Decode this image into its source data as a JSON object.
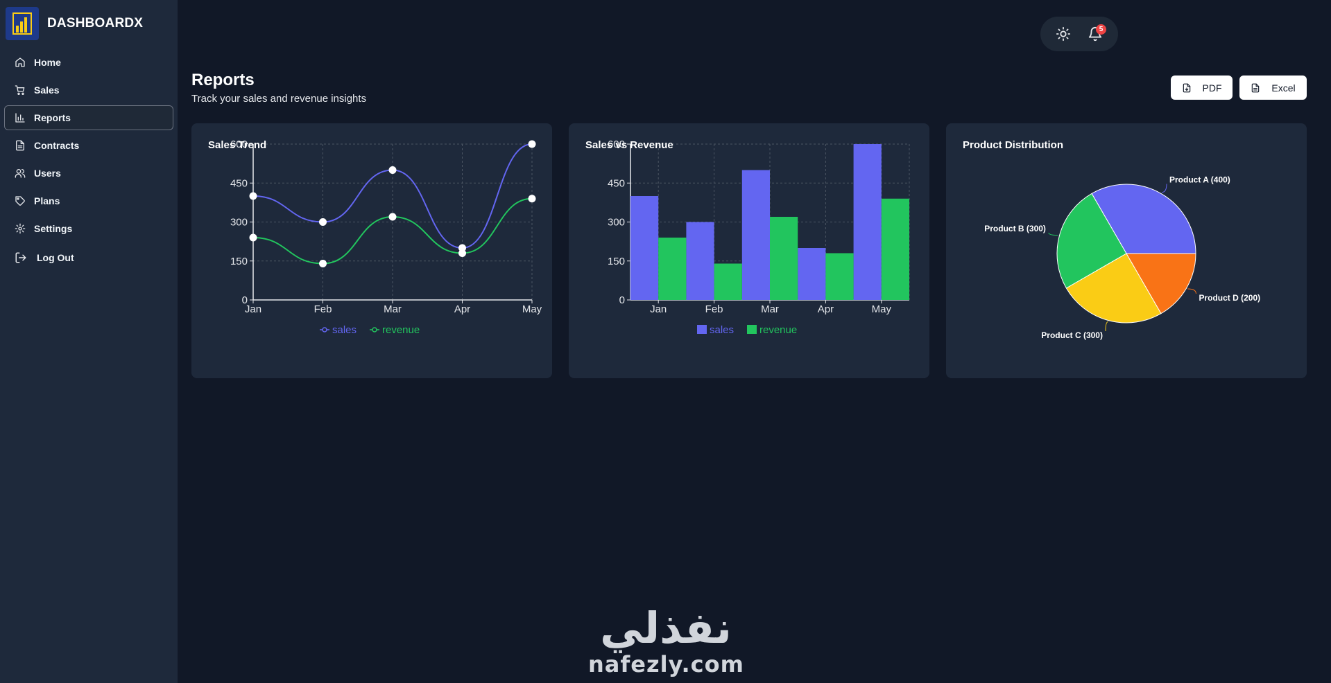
{
  "app": {
    "brand": "DASHBOARDX"
  },
  "sidebar": {
    "items": [
      {
        "label": "Home",
        "icon": "home-icon"
      },
      {
        "label": "Sales",
        "icon": "cart-icon"
      },
      {
        "label": "Reports",
        "icon": "bar-chart-icon",
        "active": true
      },
      {
        "label": "Contracts",
        "icon": "document-icon"
      },
      {
        "label": "Users",
        "icon": "users-icon"
      },
      {
        "label": "Plans",
        "icon": "tag-icon"
      },
      {
        "label": "Settings",
        "icon": "gear-icon"
      },
      {
        "label": "Log Out",
        "icon": "logout-icon"
      }
    ]
  },
  "topbar": {
    "notification_count": "5",
    "theme_icon": "sun-icon",
    "bell_icon": "bell-icon"
  },
  "header": {
    "title": "Reports",
    "subtitle": "Track your sales and revenue insights"
  },
  "actions": {
    "pdf_label": "PDF",
    "excel_label": "Excel"
  },
  "colors": {
    "sales": "#6366f1",
    "revenue": "#22c55e",
    "product_c": "#facc15",
    "product_d": "#f97316",
    "card": "#1e293b",
    "background": "#111827"
  },
  "chart_data": [
    {
      "type": "line",
      "title": "Sales Trend",
      "categories": [
        "Jan",
        "Feb",
        "Mar",
        "Apr",
        "May"
      ],
      "series": [
        {
          "name": "sales",
          "values": [
            400,
            300,
            500,
            200,
            600
          ]
        },
        {
          "name": "revenue",
          "values": [
            240,
            140,
            320,
            180,
            390
          ]
        }
      ],
      "ylim": [
        0,
        600
      ],
      "yticks": [
        0,
        150,
        300,
        450,
        600
      ],
      "grid": true,
      "legend": "bottom"
    },
    {
      "type": "bar",
      "title": "Sales vs Revenue",
      "categories": [
        "Jan",
        "Feb",
        "Mar",
        "Apr",
        "May"
      ],
      "series": [
        {
          "name": "sales",
          "values": [
            400,
            300,
            500,
            200,
            600
          ]
        },
        {
          "name": "revenue",
          "values": [
            240,
            140,
            320,
            180,
            390
          ]
        }
      ],
      "ylim": [
        0,
        600
      ],
      "yticks": [
        0,
        150,
        300,
        450,
        600
      ],
      "grid": true,
      "legend": "bottom"
    },
    {
      "type": "pie",
      "title": "Product Distribution",
      "slices": [
        {
          "label": "Product A (400)",
          "value": 400
        },
        {
          "label": "Product B (300)",
          "value": 300
        },
        {
          "label": "Product C (300)",
          "value": 300
        },
        {
          "label": "Product D (200)",
          "value": 200
        }
      ]
    }
  ],
  "watermark": {
    "arabic": "نفذلي",
    "latin": "nafezly.com"
  }
}
